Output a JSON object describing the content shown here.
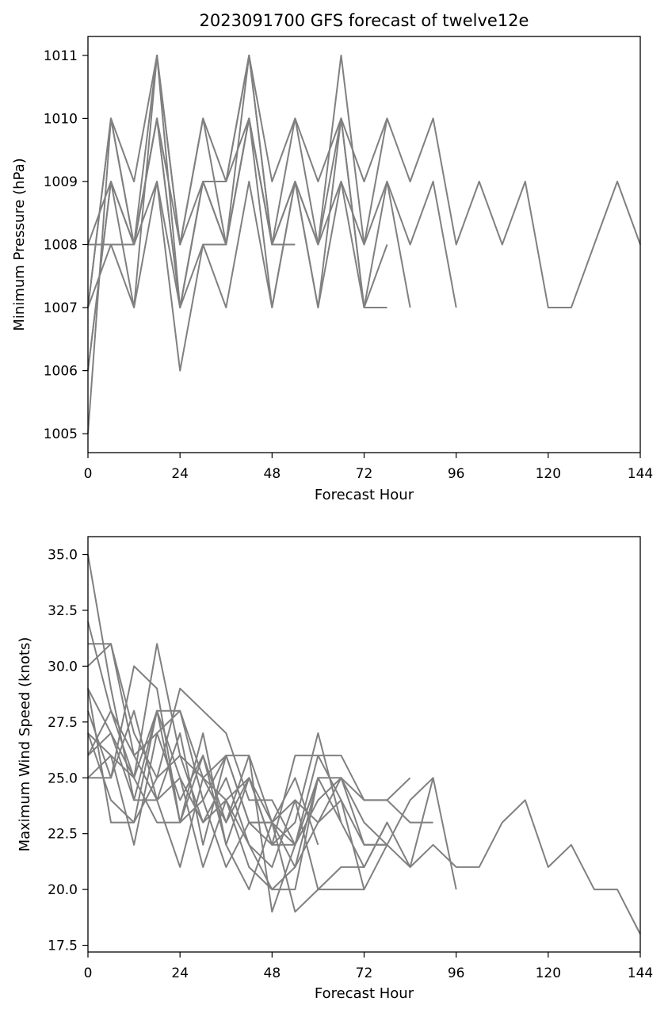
{
  "chart_data": [
    {
      "type": "line",
      "title": "2023091700 GFS forecast of twelve12e",
      "xlabel": "Forecast Hour",
      "ylabel": "Minimum Pressure (hPa)",
      "xlim": [
        0,
        144
      ],
      "ylim": [
        1004.7,
        1011.3
      ],
      "xticks": [
        0,
        24,
        48,
        72,
        96,
        120,
        144
      ],
      "yticks": [
        1005,
        1006,
        1007,
        1008,
        1009,
        1010,
        1011
      ],
      "line_color": "#808080",
      "series": [
        {
          "x": [
            0,
            6,
            12,
            18,
            24,
            30,
            36,
            42,
            48,
            54,
            60,
            66,
            72,
            78,
            84,
            90,
            96,
            102,
            108,
            114,
            120,
            126,
            132,
            138,
            144
          ],
          "y": [
            1005,
            1010,
            1009,
            1011,
            1008,
            1010,
            1009,
            1011,
            1009,
            1010,
            1009,
            1010,
            1009,
            1010,
            1009,
            1010,
            1008,
            1009,
            1008,
            1009,
            1007,
            1007,
            1008,
            1009,
            1008
          ]
        },
        {
          "x": [
            0,
            6,
            12,
            18,
            24,
            30,
            36,
            42,
            48,
            54,
            60,
            66,
            72,
            78,
            84,
            90,
            96
          ],
          "y": [
            1008,
            1009,
            1008,
            1010,
            1007,
            1009,
            1008,
            1010,
            1008,
            1009,
            1008,
            1009,
            1008,
            1009,
            1008,
            1009,
            1007
          ]
        },
        {
          "x": [
            0,
            6,
            12,
            18,
            24,
            30,
            36,
            42,
            48,
            54,
            60,
            66,
            72,
            78,
            84
          ],
          "y": [
            1007,
            1008,
            1007,
            1009,
            1006,
            1008,
            1008,
            1010,
            1007,
            1009,
            1007,
            1010,
            1007,
            1009,
            1007
          ]
        },
        {
          "x": [
            0,
            6,
            12,
            18,
            24,
            30,
            36,
            42,
            48,
            54,
            60,
            66,
            72,
            78
          ],
          "y": [
            1006,
            1009,
            1007,
            1011,
            1008,
            1010,
            1008,
            1011,
            1008,
            1010,
            1008,
            1011,
            1008,
            1010
          ]
        },
        {
          "x": [
            0,
            6,
            12,
            18,
            24,
            30,
            36,
            42,
            48,
            54,
            60,
            66,
            72,
            78
          ],
          "y": [
            1007,
            1010,
            1008,
            1010,
            1007,
            1009,
            1009,
            1010,
            1008,
            1009,
            1008,
            1010,
            1007,
            1008
          ]
        },
        {
          "x": [
            0,
            6,
            12,
            18,
            24,
            30,
            36,
            42,
            48,
            54,
            60,
            66,
            72,
            78
          ],
          "y": [
            1008,
            1008,
            1008,
            1009,
            1007,
            1008,
            1007,
            1009,
            1007,
            1009,
            1007,
            1009,
            1007,
            1007
          ]
        },
        {
          "x": [
            0,
            6,
            12,
            18,
            24,
            30,
            36,
            42,
            48,
            54
          ],
          "y": [
            1006,
            1009,
            1008,
            1010,
            1008,
            1009,
            1008,
            1010,
            1008,
            1008
          ]
        },
        {
          "x": [
            0,
            6,
            12,
            18,
            24,
            30,
            36,
            42,
            48
          ],
          "y": [
            1007,
            1010,
            1008,
            1011,
            1007,
            1009,
            1009,
            1011,
            1008
          ]
        }
      ]
    },
    {
      "type": "line",
      "title": "",
      "xlabel": "Forecast Hour",
      "ylabel": "Maximum Wind Speed (knots)",
      "xlim": [
        0,
        144
      ],
      "ylim": [
        17.2,
        35.8
      ],
      "xticks": [
        0,
        24,
        48,
        72,
        96,
        120,
        144
      ],
      "yticks": [
        17.5,
        20.0,
        22.5,
        25.0,
        27.5,
        30.0,
        32.5,
        35.0
      ],
      "line_color": "#808080",
      "series": [
        {
          "x": [
            0,
            6,
            12,
            18,
            24,
            30,
            36,
            42,
            48,
            54,
            60,
            66,
            72,
            78,
            84,
            90,
            96,
            102,
            108,
            114,
            120,
            126,
            132,
            138,
            144
          ],
          "y": [
            35,
            29,
            24,
            28,
            25,
            23,
            24,
            22,
            20,
            21,
            23,
            24,
            22,
            22,
            21,
            22,
            21,
            21,
            23,
            24,
            21,
            22,
            20,
            20,
            18
          ]
        },
        {
          "x": [
            0,
            6,
            12,
            18,
            24,
            30,
            36,
            42,
            48,
            54,
            60,
            66,
            72,
            78,
            84,
            90,
            96
          ],
          "y": [
            32,
            28,
            25,
            31,
            26,
            23,
            25,
            22,
            21,
            24,
            23,
            25,
            23,
            22,
            24,
            25,
            20
          ]
        },
        {
          "x": [
            0,
            6,
            12,
            18,
            24,
            30,
            36,
            42,
            48,
            54,
            60,
            66,
            72,
            78,
            84,
            90
          ],
          "y": [
            30,
            31,
            26,
            27,
            28,
            24,
            26,
            23,
            22,
            26,
            26,
            26,
            24,
            24,
            23,
            23
          ]
        },
        {
          "x": [
            0,
            6,
            12,
            18,
            24,
            30,
            36,
            42,
            48,
            54,
            60,
            66,
            72,
            78,
            84,
            90
          ],
          "y": [
            31,
            31,
            27,
            25,
            26,
            25,
            24,
            25,
            22,
            23,
            27,
            23,
            21,
            23,
            21,
            25
          ]
        },
        {
          "x": [
            0,
            6,
            12,
            18,
            24,
            30,
            36,
            42,
            48,
            54,
            60,
            66,
            72,
            78,
            84
          ],
          "y": [
            28,
            25,
            30,
            29,
            23,
            27,
            22,
            25,
            23,
            22,
            24,
            25,
            24,
            24,
            25
          ]
        },
        {
          "x": [
            0,
            6,
            12,
            18,
            24,
            30,
            36,
            42,
            48,
            54,
            60,
            66,
            72,
            78
          ],
          "y": [
            29,
            27,
            25,
            28,
            28,
            25,
            23,
            26,
            23,
            24,
            20,
            21,
            21,
            23
          ]
        },
        {
          "x": [
            0,
            6,
            12,
            18,
            24,
            30,
            36,
            42,
            48,
            54,
            60,
            66,
            72,
            78
          ],
          "y": [
            27,
            24,
            23,
            25,
            29,
            28,
            27,
            24,
            24,
            22,
            25,
            25,
            22,
            22
          ]
        },
        {
          "x": [
            0,
            6,
            12,
            18,
            24,
            30,
            36,
            42,
            48,
            54,
            60,
            66,
            72,
            78
          ],
          "y": [
            26,
            28,
            26,
            24,
            21,
            25,
            26,
            26,
            19,
            22,
            26,
            24,
            20,
            22
          ]
        },
        {
          "x": [
            0,
            6,
            12,
            18,
            24,
            30,
            36,
            42,
            48,
            54,
            60,
            66,
            72
          ],
          "y": [
            25,
            26,
            22,
            27,
            24,
            26,
            22,
            20,
            23,
            19,
            20,
            20,
            20
          ]
        },
        {
          "x": [
            0,
            6,
            12,
            18,
            24,
            30,
            36,
            42,
            48,
            54,
            60,
            66
          ],
          "y": [
            26,
            27,
            24,
            24,
            25,
            21,
            24,
            21,
            20,
            20,
            25,
            23
          ]
        },
        {
          "x": [
            0,
            6,
            12,
            18,
            24,
            30,
            36,
            42,
            48,
            54,
            60
          ],
          "y": [
            29,
            23,
            23,
            28,
            23,
            26,
            23,
            25,
            22,
            22,
            25
          ]
        },
        {
          "x": [
            0,
            6,
            12,
            18,
            24,
            30,
            36,
            42,
            48,
            54,
            60
          ],
          "y": [
            25,
            25,
            28,
            24,
            27,
            22,
            26,
            23,
            23,
            25,
            22
          ]
        },
        {
          "x": [
            0,
            6,
            12,
            18,
            24,
            30,
            36,
            42,
            48,
            54,
            60
          ],
          "y": [
            27,
            26,
            25,
            23,
            23,
            24,
            21,
            23,
            23,
            21,
            25
          ]
        }
      ]
    }
  ]
}
